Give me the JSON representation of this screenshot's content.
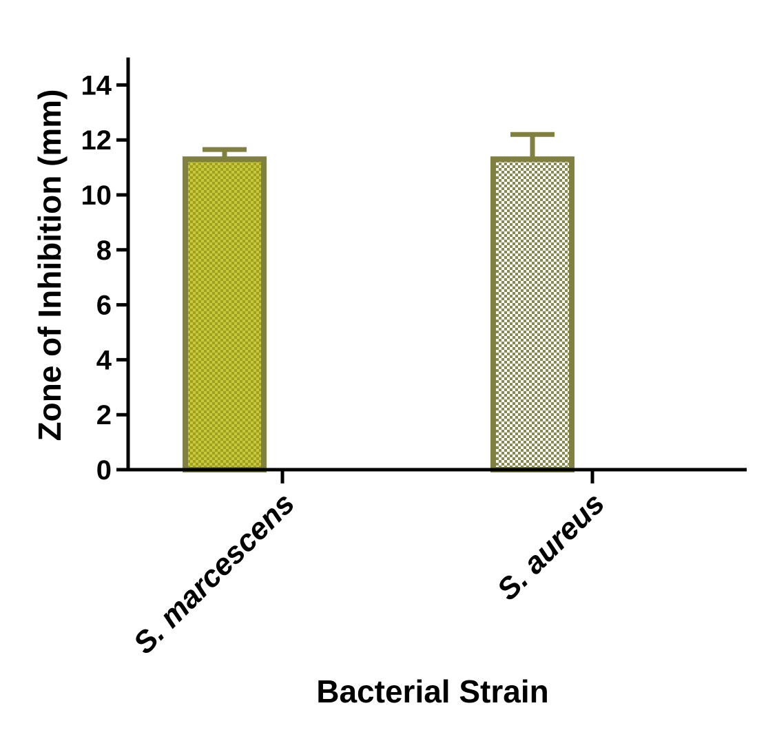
{
  "chart_data": {
    "type": "bar",
    "categories": [
      "S. marcescens",
      "S. aureus"
    ],
    "values": [
      11.3,
      11.3
    ],
    "errors": [
      0.35,
      0.9
    ],
    "xlabel": "Bacterial Strain",
    "ylabel": "Zone of Inhibition (mm)",
    "ylim": [
      0,
      15
    ],
    "yticks": [
      0,
      2,
      4,
      6,
      8,
      10,
      12,
      14
    ],
    "grid": false,
    "legend": "none",
    "colors": {
      "border": "#808040",
      "fill_dark": "#a0a020",
      "fill_dark_alt": "#c8c83c",
      "fill_light": "#ffffff",
      "fill_light_alt": "#8a8a50",
      "axis": "#000000"
    }
  }
}
